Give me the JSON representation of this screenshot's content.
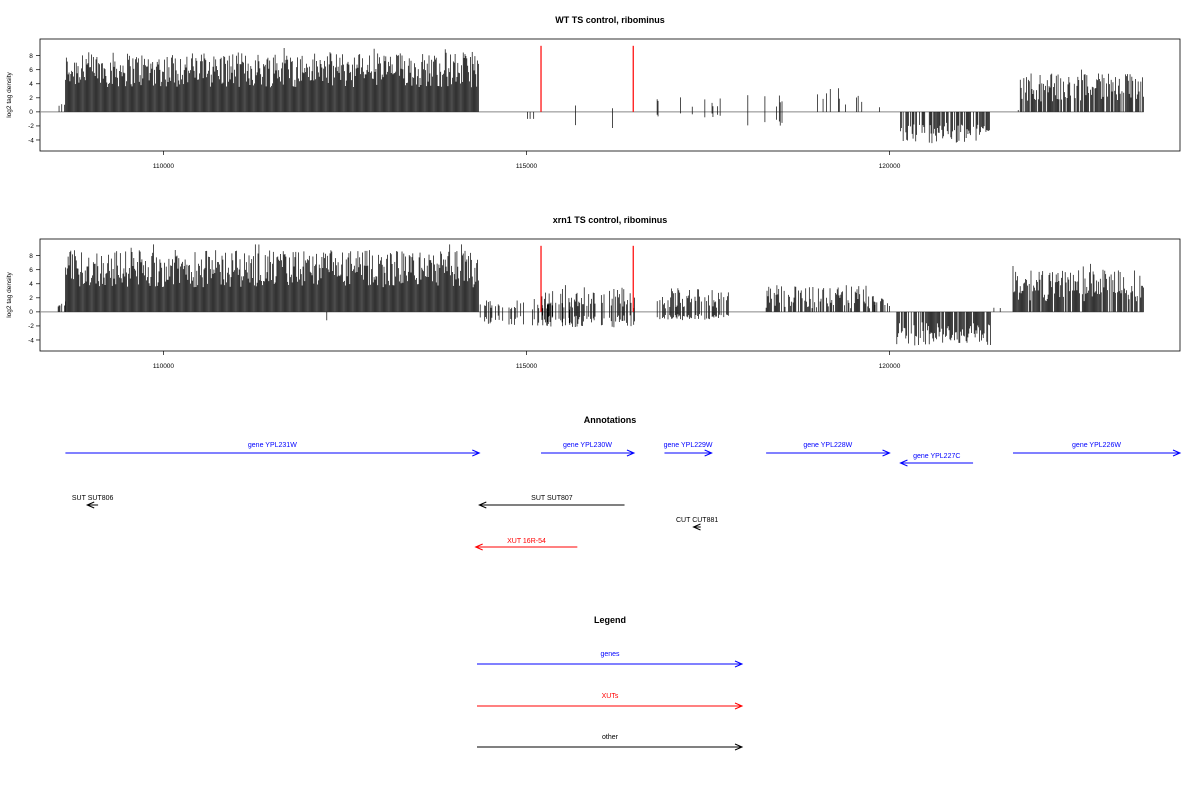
{
  "chart_data": [
    {
      "type": "bar",
      "title": "WT TS control, ribominus",
      "ylabel": "log2 tag density",
      "xlim": [
        108300,
        124000
      ],
      "ylim": [
        -5,
        9.8
      ],
      "x_ticks": [
        110000,
        115000,
        120000
      ],
      "y_ticks": [
        8,
        6,
        4,
        2,
        0,
        -2,
        -4
      ],
      "baseline_range": [
        108300,
        123500
      ],
      "markers": [
        {
          "x": 115200,
          "y": 9.4,
          "color": "#ff0000"
        },
        {
          "x": 116470,
          "y": 9.4,
          "color": "#ff0000"
        }
      ],
      "bar_color": "#000000",
      "segments": [
        {
          "from": 108550,
          "to": 108650,
          "pos": [
            0.3,
            1.2
          ],
          "neg": [
            0,
            0
          ],
          "fill": 0.5
        },
        {
          "from": 108650,
          "to": 114350,
          "pos": [
            3.5,
            8.5
          ],
          "neg": [
            0,
            0
          ],
          "fill": 1.0
        },
        {
          "from": 114350,
          "to": 114500,
          "pos": [
            0,
            0
          ],
          "neg": [
            -1.2,
            -1.2
          ],
          "fill": 0.2
        },
        {
          "from": 115000,
          "to": 115100,
          "pos": [
            0,
            0
          ],
          "neg": [
            -1.0,
            -1.0
          ],
          "fill": 0.2
        },
        {
          "from": 115600,
          "to": 116300,
          "pos": [
            0.5,
            1.8
          ],
          "neg": [
            -3.0,
            -0.5
          ],
          "fill": 0.06
        },
        {
          "from": 116700,
          "to": 117800,
          "pos": [
            0.5,
            2.2
          ],
          "neg": [
            -0.8,
            -0.2
          ],
          "fill": 0.09
        },
        {
          "from": 117800,
          "to": 118700,
          "pos": [
            0.5,
            2.5
          ],
          "neg": [
            -2.0,
            -0.8
          ],
          "fill": 0.06
        },
        {
          "from": 118700,
          "to": 119800,
          "pos": [
            0.6,
            3.4
          ],
          "neg": [
            0,
            0
          ],
          "fill": 0.1
        },
        {
          "from": 119800,
          "to": 120050,
          "pos": [
            0.5,
            2.2
          ],
          "neg": [
            0,
            0
          ],
          "fill": 0.08
        },
        {
          "from": 120150,
          "to": 121400,
          "pos": [
            0,
            0
          ],
          "neg": [
            -4.5,
            -1.5
          ],
          "fill": 0.7
        },
        {
          "from": 121400,
          "to": 121800,
          "pos": [
            0.2,
            0.6
          ],
          "neg": [
            0,
            0
          ],
          "fill": 0.05
        },
        {
          "from": 121800,
          "to": 123500,
          "pos": [
            1.5,
            5.5
          ],
          "neg": [
            0,
            0
          ],
          "fill": 0.85
        }
      ]
    },
    {
      "type": "bar",
      "title": "xrn1 TS control, ribominus",
      "ylabel": "log2 tag density",
      "xlim": [
        108300,
        124000
      ],
      "ylim": [
        -5,
        9.8
      ],
      "x_ticks": [
        110000,
        115000,
        120000
      ],
      "y_ticks": [
        8,
        6,
        4,
        2,
        0,
        -2,
        -4
      ],
      "baseline_range": [
        108300,
        123500
      ],
      "markers": [
        {
          "x": 115200,
          "y": 9.4,
          "color": "#ff0000"
        },
        {
          "x": 116470,
          "y": 9.4,
          "color": "#ff0000"
        }
      ],
      "bar_color": "#000000",
      "segments": [
        {
          "from": 108550,
          "to": 108650,
          "pos": [
            0.3,
            1.5
          ],
          "neg": [
            0,
            0
          ],
          "fill": 0.5
        },
        {
          "from": 108650,
          "to": 114350,
          "pos": [
            3.5,
            8.8
          ],
          "neg": [
            0,
            0
          ],
          "fill": 1.0
        },
        {
          "from": 112200,
          "to": 112250,
          "pos": [
            0,
            0
          ],
          "neg": [
            -1.2,
            -1.2
          ],
          "fill": 0.5
        },
        {
          "from": 114350,
          "to": 115700,
          "pos": [
            0.3,
            1.8
          ],
          "neg": [
            -2.0,
            -0.5
          ],
          "fill": 0.3
        },
        {
          "from": 115200,
          "to": 116500,
          "pos": [
            0.5,
            3.5
          ],
          "neg": [
            -2.2,
            -0.5
          ],
          "fill": 0.55
        },
        {
          "from": 116800,
          "to": 117800,
          "pos": [
            0.5,
            3.5
          ],
          "neg": [
            -1.2,
            -0.3
          ],
          "fill": 0.5
        },
        {
          "from": 118300,
          "to": 119800,
          "pos": [
            0.5,
            3.8
          ],
          "neg": [
            0,
            0
          ],
          "fill": 0.7
        },
        {
          "from": 119800,
          "to": 120050,
          "pos": [
            0.5,
            2.4
          ],
          "neg": [
            0,
            0
          ],
          "fill": 0.4
        },
        {
          "from": 120100,
          "to": 121400,
          "pos": [
            0,
            0
          ],
          "neg": [
            -4.8,
            -1.5
          ],
          "fill": 0.85
        },
        {
          "from": 121400,
          "to": 121700,
          "pos": [
            0.2,
            0.6
          ],
          "neg": [
            0,
            0
          ],
          "fill": 0.08
        },
        {
          "from": 121700,
          "to": 123500,
          "pos": [
            1.5,
            6.0
          ],
          "neg": [
            0,
            0
          ],
          "fill": 0.9
        }
      ]
    }
  ],
  "annotations": {
    "title": "Annotations",
    "xlim": [
      108300,
      124000
    ],
    "items": [
      {
        "label": "gene YPL231W",
        "start": 108650,
        "end": 114350,
        "dir": "right",
        "color": "#0000ff",
        "row": 0
      },
      {
        "label": "gene YPL230W",
        "start": 115200,
        "end": 116480,
        "dir": "right",
        "color": "#0000ff",
        "row": 0
      },
      {
        "label": "gene YPL229W",
        "start": 116900,
        "end": 117550,
        "dir": "right",
        "color": "#0000ff",
        "row": 0
      },
      {
        "label": "gene YPL228W",
        "start": 118300,
        "end": 120000,
        "dir": "right",
        "color": "#0000ff",
        "row": 0
      },
      {
        "label": "gene YPL227C",
        "start": 120150,
        "end": 121150,
        "dir": "left",
        "color": "#0000ff",
        "row": 1
      },
      {
        "label": "gene YPL226W",
        "start": 121700,
        "end": 124000,
        "dir": "right",
        "color": "#0000ff",
        "row": 0
      },
      {
        "label": "SUT SUT806",
        "start": 108950,
        "end": 109100,
        "dir": "left",
        "color": "#000000",
        "row": 2
      },
      {
        "label": "SUT SUT807",
        "start": 114350,
        "end": 116350,
        "dir": "left",
        "color": "#000000",
        "row": 3
      },
      {
        "label": "CUT CUT881",
        "start": 117300,
        "end": 117400,
        "dir": "left",
        "color": "#000000",
        "row": 4
      },
      {
        "label": "XUT 16R-54",
        "start": 114300,
        "end": 115700,
        "dir": "left",
        "color": "#ff0000",
        "row": 5
      }
    ]
  },
  "legend": {
    "title": "Legend",
    "items": [
      {
        "label": "genes",
        "color": "#0000ff"
      },
      {
        "label": "XUTs",
        "color": "#ff0000"
      },
      {
        "label": "other",
        "color": "#000000"
      }
    ]
  }
}
